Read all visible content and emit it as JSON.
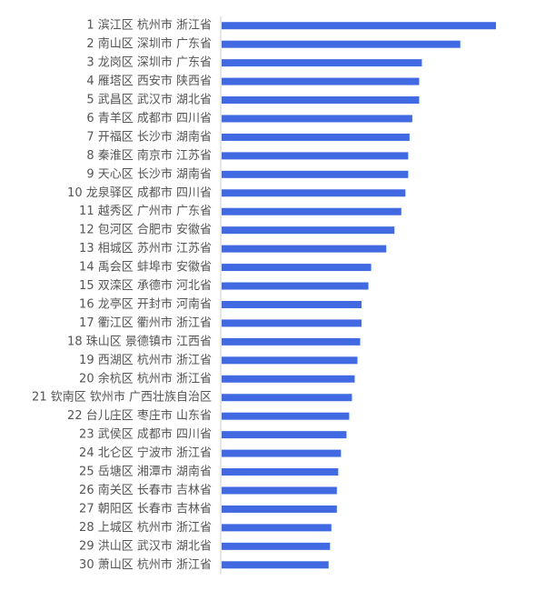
{
  "chart_data": {
    "type": "bar",
    "orientation": "horizontal",
    "bar_color": "#4169e1",
    "axis_color": "#cccccc",
    "label_color": "#555555",
    "xlim": [
      0,
      100
    ],
    "categories": [
      "1 滨江区 杭州市 浙江省",
      "2 南山区 深圳市 广东省",
      "3 龙岗区 深圳市 广东省",
      "4 雁塔区 西安市 陕西省",
      "5 武昌区 武汉市 湖北省",
      "6 青羊区 成都市 四川省",
      "7 开福区 长沙市 湖南省",
      "8 秦淮区 南京市 江苏省",
      "9 天心区 长沙市 湖南省",
      "10 龙泉驿区 成都市 四川省",
      "11 越秀区 广州市 广东省",
      "12 包河区 合肥市 安徽省",
      "13 相城区 苏州市 江苏省",
      "14 禹会区 蚌埠市 安徽省",
      "15 双滦区 承德市 河北省",
      "16 龙亭区 开封市 河南省",
      "17 衢江区 衢州市 浙江省",
      "18 珠山区 景德镇市 江西省",
      "19 西湖区 杭州市 浙江省",
      "20 余杭区 杭州市 浙江省",
      "21 钦南区 钦州市 广西壮族自治区",
      "22 台儿庄区 枣庄市 山东省",
      "23 武侯区 成都市 四川省",
      "24 北仑区 宁波市 浙江省",
      "25 岳塘区 湘潭市 湖南省",
      "26 南关区 长春市 吉林省",
      "27 朝阳区 长春市 吉林省",
      "28 上城区 杭州市 浙江省",
      "29 洪山区 武汉市 湖北省",
      "30 萧山区 杭州市 浙江省"
    ],
    "values": [
      100,
      87,
      73,
      72,
      72,
      69.5,
      68.5,
      68,
      68,
      67,
      65.5,
      63,
      60,
      54.5,
      53.5,
      51,
      51,
      50.5,
      49.5,
      48.5,
      47.5,
      46.5,
      45.5,
      43.5,
      42.5,
      42,
      42,
      40,
      39.5,
      39
    ]
  }
}
